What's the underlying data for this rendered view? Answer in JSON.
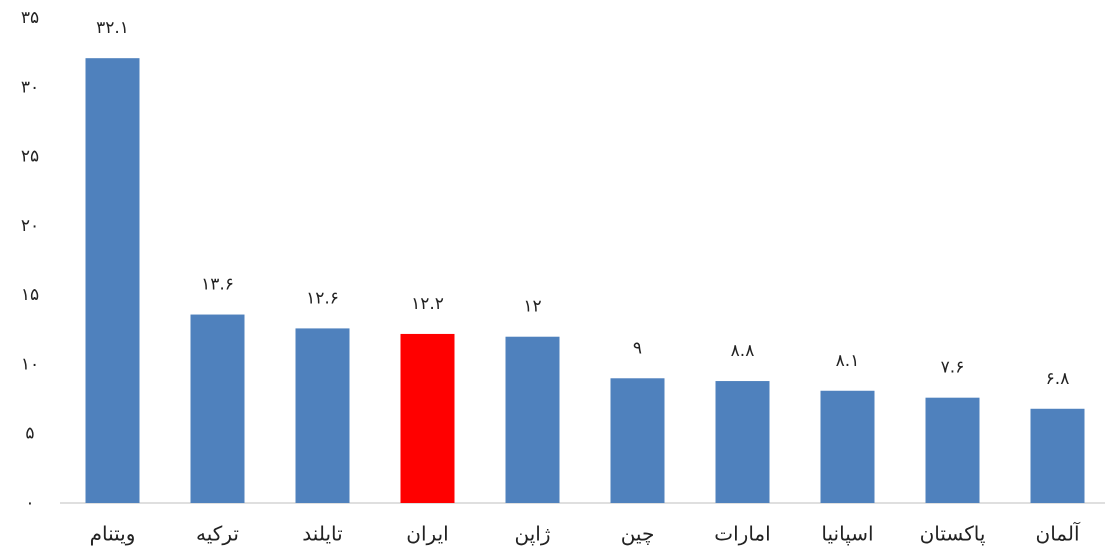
{
  "chart_data": {
    "type": "bar",
    "categories": [
      "ویتنام",
      "ترکیه",
      "تایلند",
      "ایران",
      "ژاپن",
      "چین",
      "امارات",
      "اسپانیا",
      "پاکستان",
      "آلمان"
    ],
    "values": [
      32.1,
      13.6,
      12.6,
      12.2,
      12,
      9,
      8.8,
      8.1,
      7.6,
      6.8
    ],
    "value_labels": [
      "۳۲.۱",
      "۱۳.۶",
      "۱۲.۶",
      "۱۲.۲",
      "۱۲",
      "۹",
      "۸.۸",
      "۸.۱",
      "۷.۶",
      "۶.۸"
    ],
    "colors": [
      "#4f81bd",
      "#4f81bd",
      "#4f81bd",
      "#ff0000",
      "#4f81bd",
      "#4f81bd",
      "#4f81bd",
      "#4f81bd",
      "#4f81bd",
      "#4f81bd"
    ],
    "ylim": [
      0,
      35
    ],
    "yticks": [
      {
        "value": 0,
        "label": "۰"
      },
      {
        "value": 5,
        "label": "۵"
      },
      {
        "value": 10,
        "label": "۱۰"
      },
      {
        "value": 15,
        "label": "۱۵"
      },
      {
        "value": 20,
        "label": "۲۰"
      },
      {
        "value": 25,
        "label": "۲۵"
      },
      {
        "value": 30,
        "label": "۳۰"
      },
      {
        "value": 35,
        "label": "۳۵"
      }
    ],
    "grid": false
  }
}
